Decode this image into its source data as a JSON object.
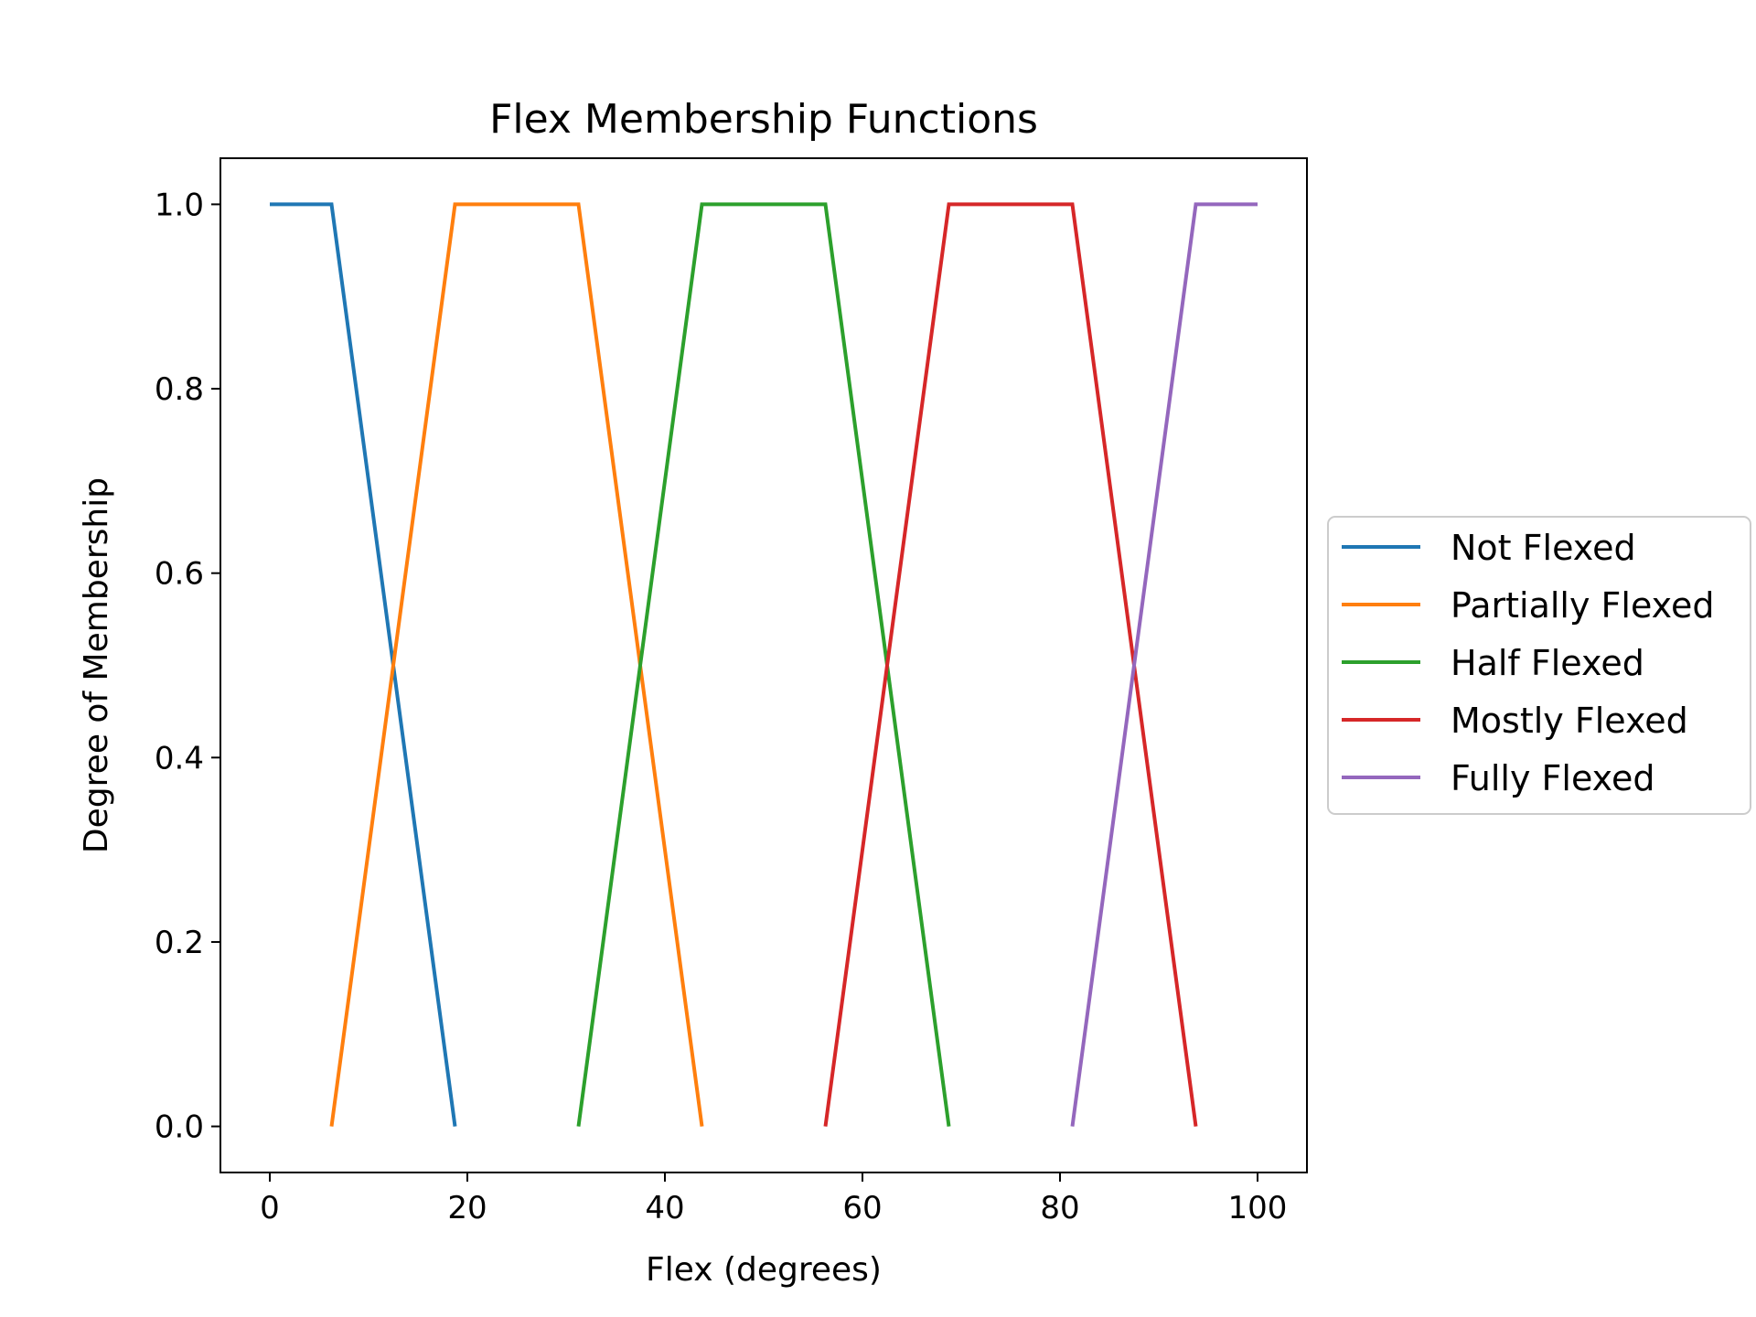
{
  "chart_data": {
    "type": "line",
    "title": "Flex Membership Functions",
    "xlabel": "Flex (degrees)",
    "ylabel": "Degree of Membership",
    "xlim": [
      -5,
      105
    ],
    "ylim": [
      -0.05,
      1.05
    ],
    "xticks": [
      0,
      20,
      40,
      60,
      80,
      100
    ],
    "yticks": [
      0.0,
      0.2,
      0.4,
      0.6,
      0.8,
      1.0
    ],
    "ytick_labels": [
      "0.0",
      "0.2",
      "0.4",
      "0.6",
      "0.8",
      "1.0"
    ],
    "grid": false,
    "legend_position": "outside-right",
    "series": [
      {
        "name": "Not Flexed",
        "color": "#1f77b4",
        "x": [
          0,
          6.25,
          18.75
        ],
        "y": [
          1,
          1,
          0
        ]
      },
      {
        "name": "Partially Flexed",
        "color": "#ff7f0e",
        "x": [
          6.25,
          18.75,
          31.25,
          43.75
        ],
        "y": [
          0,
          1,
          1,
          0
        ]
      },
      {
        "name": "Half Flexed",
        "color": "#2ca02c",
        "x": [
          31.25,
          43.75,
          56.25,
          68.75
        ],
        "y": [
          0,
          1,
          1,
          0
        ]
      },
      {
        "name": "Mostly Flexed",
        "color": "#d62728",
        "x": [
          56.25,
          68.75,
          81.25,
          93.75
        ],
        "y": [
          0,
          1,
          1,
          0
        ]
      },
      {
        "name": "Fully Flexed",
        "color": "#9467bd",
        "x": [
          81.25,
          93.75,
          100
        ],
        "y": [
          0,
          1,
          1
        ]
      }
    ]
  }
}
